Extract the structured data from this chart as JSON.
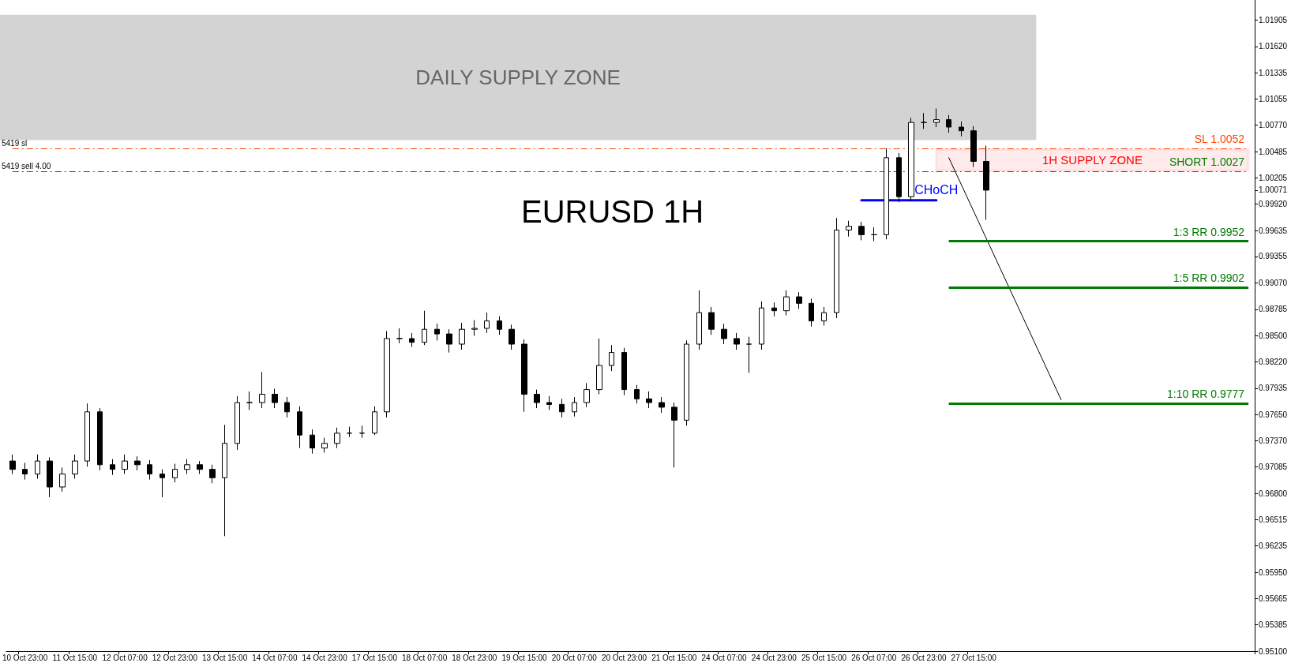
{
  "chart_data": {
    "type": "candlestick",
    "title": "EURUSD 1H",
    "color": "#000000",
    "grid": false,
    "legend": false,
    "categories": [
      null,
      "10 Oct 23:00",
      null,
      null,
      null,
      "11 Oct 15:00",
      null,
      null,
      null,
      "12 Oct 07:00",
      null,
      null,
      null,
      "12 Oct 23:00",
      null,
      null,
      null,
      "13 Oct 15:00",
      null,
      null,
      null,
      "14 Oct 07:00",
      null,
      null,
      null,
      "14 Oct 23:00",
      null,
      null,
      null,
      "17 Oct 15:00",
      null,
      null,
      null,
      "18 Oct 07:00",
      null,
      null,
      null,
      "18 Oct 23:00",
      null,
      null,
      null,
      "19 Oct 15:00",
      null,
      null,
      null,
      "20 Oct 07:00",
      null,
      null,
      null,
      "20 Oct 23:00",
      null,
      null,
      null,
      "21 Oct 15:00",
      null,
      null,
      null,
      "24 Oct 07:00",
      null,
      null,
      null,
      "24 Oct 23:00",
      null,
      null,
      null,
      "25 Oct 15:00",
      null,
      null,
      null,
      "26 Oct 07:00",
      null,
      null,
      null,
      "26 Oct 23:00",
      null,
      null,
      null,
      "27 Oct 15:00",
      null,
      null,
      null,
      null,
      null,
      null,
      null,
      null,
      null,
      null,
      null,
      null,
      null,
      null,
      null,
      null,
      null,
      null,
      null,
      null,
      null,
      null
    ],
    "ohlc": [
      [
        0.9715,
        0.9722,
        0.9701,
        0.9706
      ],
      [
        0.9706,
        0.9713,
        0.9695,
        0.9701
      ],
      [
        0.9701,
        0.9722,
        0.9696,
        0.9715
      ],
      [
        0.9715,
        0.9719,
        0.9676,
        0.9687
      ],
      [
        0.9687,
        0.9708,
        0.9682,
        0.9701
      ],
      [
        0.9701,
        0.9722,
        0.9696,
        0.9715
      ],
      [
        0.9715,
        0.9777,
        0.9709,
        0.9768
      ],
      [
        0.9768,
        0.9772,
        0.9705,
        0.9711
      ],
      [
        0.9711,
        0.9717,
        0.97,
        0.9706
      ],
      [
        0.9706,
        0.9722,
        0.9701,
        0.9715
      ],
      [
        0.9715,
        0.972,
        0.9705,
        0.9711
      ],
      [
        0.9711,
        0.9716,
        0.9695,
        0.9701
      ],
      [
        0.9701,
        0.9706,
        0.9676,
        0.9697
      ],
      [
        0.9697,
        0.9712,
        0.9692,
        0.9706
      ],
      [
        0.9706,
        0.9717,
        0.9701,
        0.9711
      ],
      [
        0.9711,
        0.9715,
        0.9701,
        0.9706
      ],
      [
        0.9706,
        0.9711,
        0.9691,
        0.9697
      ],
      [
        0.9697,
        0.9754,
        0.9634,
        0.9734
      ],
      [
        0.9734,
        0.9785,
        0.9727,
        0.9778
      ],
      [
        0.9778,
        0.979,
        0.977,
        0.9778
      ],
      [
        0.9778,
        0.9811,
        0.9772,
        0.9787
      ],
      [
        0.9787,
        0.9793,
        0.9772,
        0.9778
      ],
      [
        0.9778,
        0.9784,
        0.9762,
        0.9768
      ],
      [
        0.9768,
        0.9774,
        0.9729,
        0.9743
      ],
      [
        0.9743,
        0.9749,
        0.9723,
        0.9729
      ],
      [
        0.9729,
        0.974,
        0.9724,
        0.9734
      ],
      [
        0.9734,
        0.9751,
        0.9729,
        0.9745
      ],
      [
        0.9745,
        0.9752,
        0.9741,
        0.9745
      ],
      [
        0.9745,
        0.9753,
        0.974,
        0.9745
      ],
      [
        0.9745,
        0.9774,
        0.9743,
        0.9768
      ],
      [
        0.9768,
        0.9855,
        0.9762,
        0.9847
      ],
      [
        0.9847,
        0.9858,
        0.9842,
        0.9847
      ],
      [
        0.9847,
        0.9853,
        0.9838,
        0.9843
      ],
      [
        0.9843,
        0.9877,
        0.984,
        0.9857
      ],
      [
        0.9857,
        0.9863,
        0.9845,
        0.9852
      ],
      [
        0.9852,
        0.9857,
        0.9832,
        0.9841
      ],
      [
        0.9841,
        0.9864,
        0.9835,
        0.9857
      ],
      [
        0.9857,
        0.9867,
        0.985,
        0.9858
      ],
      [
        0.9858,
        0.9875,
        0.9853,
        0.9866
      ],
      [
        0.9866,
        0.9871,
        0.9851,
        0.9857
      ],
      [
        0.9857,
        0.9862,
        0.9835,
        0.9841
      ],
      [
        0.9841,
        0.9846,
        0.9768,
        0.9787
      ],
      [
        0.9787,
        0.9792,
        0.9772,
        0.9778
      ],
      [
        0.9778,
        0.9785,
        0.977,
        0.9776
      ],
      [
        0.9776,
        0.9782,
        0.9762,
        0.9768
      ],
      [
        0.9768,
        0.9784,
        0.9763,
        0.9778
      ],
      [
        0.9778,
        0.9799,
        0.9773,
        0.9792
      ],
      [
        0.9792,
        0.9847,
        0.9787,
        0.9818
      ],
      [
        0.9818,
        0.984,
        0.9812,
        0.9832
      ],
      [
        0.9832,
        0.9837,
        0.9786,
        0.9792
      ],
      [
        0.9792,
        0.9797,
        0.9777,
        0.9782
      ],
      [
        0.9782,
        0.979,
        0.9772,
        0.9778
      ],
      [
        0.9778,
        0.9784,
        0.9767,
        0.9773
      ],
      [
        0.9773,
        0.9778,
        0.9708,
        0.9759
      ],
      [
        0.9759,
        0.9845,
        0.9753,
        0.9841
      ],
      [
        0.9841,
        0.9899,
        0.9835,
        0.9875
      ],
      [
        0.9875,
        0.9881,
        0.9851,
        0.9857
      ],
      [
        0.9857,
        0.9863,
        0.9841,
        0.9847
      ],
      [
        0.9847,
        0.9853,
        0.9835,
        0.9841
      ],
      [
        0.9841,
        0.9849,
        0.981,
        0.9841
      ],
      [
        0.9841,
        0.9887,
        0.9835,
        0.988
      ],
      [
        0.988,
        0.9886,
        0.9871,
        0.9877
      ],
      [
        0.9877,
        0.9899,
        0.9872,
        0.9892
      ],
      [
        0.9892,
        0.9897,
        0.9879,
        0.9885
      ],
      [
        0.9885,
        0.989,
        0.986,
        0.9866
      ],
      [
        0.9866,
        0.9881,
        0.9861,
        0.9875
      ],
      [
        0.9875,
        0.9977,
        0.9869,
        0.9964
      ],
      [
        0.9964,
        0.9974,
        0.9957,
        0.9968
      ],
      [
        0.9968,
        0.9973,
        0.9953,
        0.9959
      ],
      [
        0.9959,
        0.9967,
        0.9952,
        0.9959
      ],
      [
        0.9959,
        1.0052,
        0.9954,
        1.0042
      ],
      [
        1.0042,
        1.0047,
        0.9994,
        1.0
      ],
      [
        1.0,
        1.0085,
        0.9995,
        1.008
      ],
      [
        1.008,
        1.009,
        1.0073,
        1.008
      ],
      [
        1.008,
        1.0095,
        1.0075,
        1.0083
      ],
      [
        1.0083,
        1.0088,
        1.0069,
        1.0075
      ],
      [
        1.0075,
        1.0081,
        1.0065,
        1.0071
      ],
      [
        1.0071,
        1.0076,
        1.0032,
        1.0038
      ],
      [
        1.0038,
        1.0055,
        0.9975,
        1.0007
      ],
      null,
      null,
      null,
      null,
      null,
      null,
      null,
      null,
      null,
      null,
      null,
      null,
      null,
      null,
      null,
      null,
      null,
      null,
      null,
      null,
      null
    ],
    "series": [
      {
        "type": "line",
        "color": "#000000",
        "values": [
          null,
          null,
          null,
          null,
          null,
          null,
          null,
          null,
          null,
          null,
          null,
          null,
          null,
          null,
          null,
          null,
          null,
          null,
          null,
          null,
          null,
          null,
          null,
          null,
          null,
          null,
          null,
          null,
          null,
          null,
          null,
          null,
          null,
          null,
          null,
          null,
          null,
          null,
          null,
          null,
          null,
          null,
          null,
          null,
          null,
          null,
          null,
          null,
          null,
          null,
          null,
          null,
          null,
          null,
          null,
          null,
          null,
          null,
          null,
          null,
          null,
          null,
          null,
          null,
          null,
          null,
          null,
          null,
          null,
          null,
          null,
          null,
          null,
          null,
          null,
          1.0042,
          null,
          null,
          null,
          null,
          null,
          null,
          null,
          null,
          0.9781,
          null,
          null,
          null,
          null,
          null,
          null,
          null,
          null,
          null,
          null,
          null,
          null,
          null,
          null,
          null
        ]
      },
      {
        "type": "line",
        "name": "CHoCH",
        "color": "#0000ff",
        "values": [
          null,
          null,
          null,
          null,
          null,
          null,
          null,
          null,
          null,
          null,
          null,
          null,
          null,
          null,
          null,
          null,
          null,
          null,
          null,
          null,
          null,
          null,
          null,
          null,
          null,
          null,
          null,
          null,
          null,
          null,
          null,
          null,
          null,
          null,
          null,
          null,
          null,
          null,
          null,
          null,
          null,
          null,
          null,
          null,
          null,
          null,
          null,
          null,
          null,
          null,
          null,
          null,
          null,
          null,
          null,
          null,
          null,
          null,
          null,
          null,
          null,
          null,
          null,
          null,
          null,
          null,
          null,
          null,
          0.9996,
          0.9996,
          0.9996,
          0.9996,
          0.9996,
          0.9996,
          0.9996,
          null,
          null,
          null,
          null,
          null,
          null,
          null,
          null,
          null,
          null,
          null,
          null,
          null,
          null,
          null,
          null,
          null,
          null,
          null,
          null,
          null,
          null,
          null,
          null,
          null
        ]
      }
    ],
    "ylim": [
      0.951,
      1.0212
    ],
    "yticks": [
      {
        "value": 1.01905,
        "label": "1.01905"
      },
      {
        "value": 1.0162,
        "label": "1.01620"
      },
      {
        "value": 1.01335,
        "label": "1.01335"
      },
      {
        "value": 1.01055,
        "label": "1.01055"
      },
      {
        "value": 1.0077,
        "label": "1.00770"
      },
      {
        "value": 1.00485,
        "label": "1.00485"
      },
      {
        "value": 1.00205,
        "label": "1.00205"
      },
      {
        "value": 1.00071,
        "label": "1.00071"
      },
      {
        "value": 0.9992,
        "label": "0.99920"
      },
      {
        "value": 0.99635,
        "label": "0.99635"
      },
      {
        "value": 0.99355,
        "label": "0.99355"
      },
      {
        "value": 0.9907,
        "label": "0.99070"
      },
      {
        "value": 0.98785,
        "label": "0.98785"
      },
      {
        "value": 0.985,
        "label": "0.98500"
      },
      {
        "value": 0.9822,
        "label": "0.98220"
      },
      {
        "value": 0.97935,
        "label": "0.97935"
      },
      {
        "value": 0.9765,
        "label": "0.97650"
      },
      {
        "value": 0.9737,
        "label": "0.97370"
      },
      {
        "value": 0.97085,
        "label": "0.97085"
      },
      {
        "value": 0.968,
        "label": "0.96800"
      },
      {
        "value": 0.96515,
        "label": "0.96515"
      },
      {
        "value": 0.96235,
        "label": "0.96235"
      },
      {
        "value": 0.9595,
        "label": "0.95950"
      },
      {
        "value": 0.95665,
        "label": "0.95665"
      },
      {
        "value": 0.95385,
        "label": "0.95385"
      },
      {
        "value": 0.951,
        "label": "0.95100"
      }
    ],
    "bands": [
      {
        "axis": "y",
        "from": 1.0061,
        "to": 1.0196,
        "label": "DAILY SUPPLY ZONE",
        "color": "#d3d3d3"
      },
      {
        "axis": "y",
        "from": 1.0028,
        "to": 1.0051,
        "label": "1H SUPPLY ZONE",
        "color": "#ff0000"
      }
    ],
    "ref_lines": [
      {
        "axis": "y",
        "value": 1.0052,
        "label": "SL 1.0052",
        "color": "#ff4500",
        "line_style": "dashed"
      },
      {
        "axis": "y",
        "value": 1.0027,
        "label": "SHORT 1.0027",
        "color": "#008000",
        "line_style": "dashed"
      },
      {
        "axis": "y",
        "value": 0.9952,
        "label": "1:3 RR 0.9952",
        "color": "#007a00",
        "line_style": "solid"
      },
      {
        "axis": "y",
        "value": 0.9902,
        "label": "1:5 RR 0.9902",
        "color": "#007a00",
        "line_style": "solid"
      },
      {
        "axis": "y",
        "value": 0.9777,
        "label": "1:10 RR 0.9777",
        "color": "#007a00",
        "line_style": "solid"
      }
    ],
    "annotations": [
      "5419 sl",
      "5419 sell 4.00"
    ]
  }
}
